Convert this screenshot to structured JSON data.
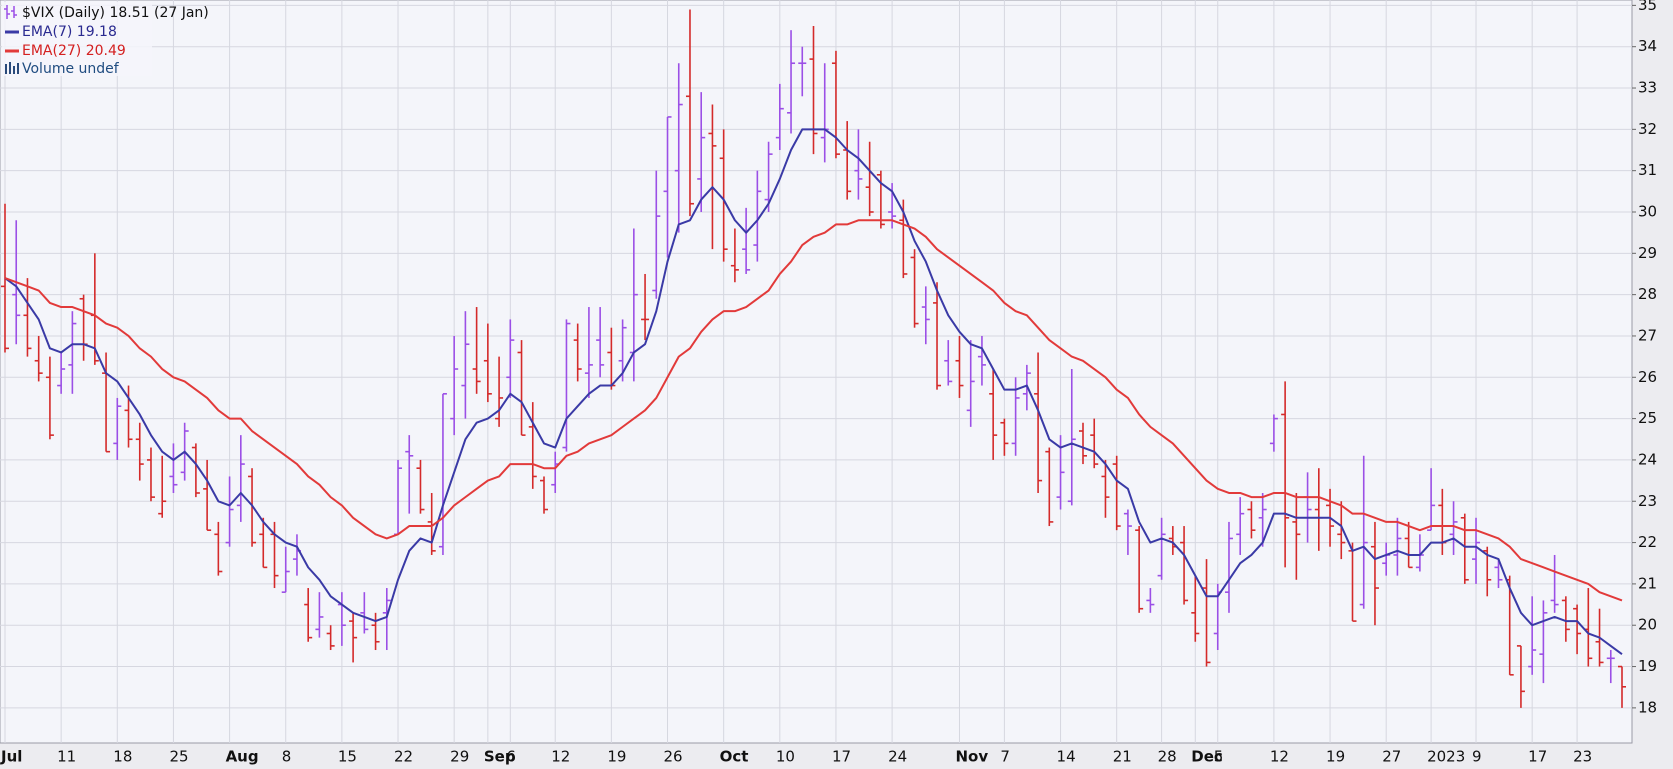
{
  "chart_data": {
    "type": "ohlc",
    "title": "$VIX (Daily) 18.51 (27 Jan)",
    "annotations": [
      "Volume undef"
    ],
    "categories": [
      "Jul",
      null,
      null,
      null,
      null,
      "11",
      null,
      null,
      null,
      null,
      "18",
      null,
      null,
      null,
      null,
      "25",
      null,
      null,
      null,
      null,
      "Aug",
      null,
      null,
      null,
      null,
      "8",
      null,
      null,
      null,
      null,
      "15",
      null,
      null,
      null,
      null,
      "22",
      null,
      null,
      null,
      null,
      "29",
      null,
      null,
      "Sep",
      null,
      "6",
      null,
      null,
      null,
      "12",
      null,
      null,
      null,
      null,
      "19",
      null,
      null,
      null,
      null,
      "26",
      null,
      null,
      null,
      null,
      "Oct",
      null,
      null,
      null,
      null,
      "10",
      null,
      null,
      null,
      null,
      "17",
      null,
      null,
      null,
      null,
      "24",
      null,
      null,
      null,
      null,
      null,
      "Nov",
      null,
      null,
      null,
      "7",
      null,
      null,
      null,
      null,
      "14",
      null,
      null,
      null,
      null,
      "21",
      null,
      null,
      null,
      "28",
      null,
      null,
      "Dec",
      null,
      "5",
      null,
      null,
      null,
      null,
      "12",
      null,
      null,
      null,
      null,
      "19",
      null,
      null,
      null,
      null,
      "27",
      null,
      null,
      null,
      "2023",
      null,
      null,
      null,
      "9",
      null,
      null,
      null,
      null,
      "17",
      null,
      null,
      null,
      "23",
      null,
      null,
      null,
      null
    ],
    "ylim": [
      17.15,
      35.13
    ],
    "yticks": [
      18,
      19,
      20,
      21,
      22,
      23,
      24,
      25,
      26,
      27,
      28,
      29,
      30,
      31,
      32,
      33,
      34,
      35
    ],
    "grid": true,
    "series": [
      {
        "type": "ohlc",
        "up_color": "#9b4fe6",
        "down_color": "#d42a2a",
        "open": [
          28.2,
          28.0,
          27.5,
          26.4,
          26.0,
          25.8,
          26.3,
          27.9,
          27.5,
          26.1,
          24.4,
          25.2,
          24.5,
          24.0,
          22.7,
          23.6,
          23.7,
          24.3,
          23.3,
          22.2,
          22.0,
          22.9,
          23.6,
          22.2,
          22.2,
          20.8,
          21.6,
          20.5,
          19.9,
          19.8,
          20.5,
          20.1,
          20.3,
          20.0,
          20.3,
          22.2,
          24.2,
          23.8,
          22.5,
          21.9,
          25.0,
          25.8,
          26.2,
          26.4,
          25.0,
          26.0,
          26.6,
          24.8,
          23.5,
          23.4,
          24.3,
          26.9,
          26.1,
          26.9,
          26.6,
          26.4,
          26.6,
          27.4,
          28.1,
          30.5,
          31.0,
          32.8,
          30.8,
          31.9,
          31.3,
          28.7,
          29.1,
          29.2,
          30.3,
          31.8,
          32.4,
          33.6,
          33.7,
          31.8,
          33.6,
          31.5,
          31.0,
          30.6,
          30.9,
          30.0,
          29.8,
          28.9,
          27.7,
          27.8,
          26.4,
          26.4,
          25.2,
          26.5,
          25.6,
          24.9,
          24.4,
          25.6,
          25.6,
          24.2,
          23.1,
          23.0,
          24.7,
          24.6,
          23.6,
          23.9,
          22.7,
          22.3,
          20.6,
          21.2,
          22.1,
          22.0,
          20.3,
          20.9,
          19.8,
          20.8,
          22.2,
          22.8,
          22.6,
          24.4,
          25.1,
          22.5,
          23.1,
          22.8,
          22.9,
          22.2,
          21.8,
          20.5,
          21.9,
          21.5,
          21.7,
          22.1,
          21.4,
          22.3,
          22.9,
          22.2,
          22.6,
          21.6,
          21.8,
          21.4,
          21.1,
          19.5,
          19.0,
          19.3,
          20.6,
          20.6,
          20.4,
          19.9,
          19.6,
          19.2,
          19.0
        ],
        "high": [
          30.2,
          29.8,
          28.4,
          27.0,
          26.5,
          26.6,
          27.6,
          28.0,
          29.0,
          26.6,
          25.5,
          25.8,
          24.9,
          24.3,
          24.1,
          24.4,
          24.9,
          24.4,
          24.0,
          22.5,
          23.6,
          24.6,
          23.8,
          22.6,
          22.5,
          21.9,
          22.2,
          20.9,
          20.8,
          20.0,
          20.8,
          20.3,
          20.8,
          20.3,
          20.9,
          24.0,
          24.6,
          24.0,
          23.2,
          25.6,
          27.0,
          27.6,
          27.7,
          27.3,
          26.5,
          27.4,
          26.9,
          25.4,
          23.6,
          24.2,
          27.4,
          27.3,
          27.7,
          27.7,
          27.2,
          27.4,
          29.6,
          28.5,
          31.0,
          32.3,
          33.6,
          34.9,
          32.9,
          32.6,
          32.0,
          29.6,
          30.1,
          31.0,
          31.7,
          33.1,
          34.4,
          34.0,
          34.5,
          33.6,
          33.9,
          32.2,
          32.0,
          31.7,
          31.0,
          30.7,
          30.3,
          29.1,
          28.2,
          28.3,
          26.9,
          27.0,
          26.9,
          27.0,
          26.2,
          25.0,
          26.0,
          26.3,
          26.6,
          24.3,
          24.6,
          26.2,
          24.9,
          25.0,
          24.0,
          24.1,
          22.8,
          22.4,
          20.9,
          22.6,
          22.4,
          22.4,
          21.2,
          21.6,
          21.0,
          22.5,
          23.1,
          23.0,
          23.2,
          25.1,
          25.9,
          23.2,
          23.7,
          23.8,
          23.3,
          23.0,
          22.0,
          24.1,
          22.5,
          22.0,
          22.6,
          22.5,
          22.2,
          23.8,
          23.3,
          23.0,
          22.7,
          22.6,
          21.9,
          21.6,
          21.2,
          19.5,
          20.7,
          20.6,
          21.7,
          20.7,
          20.5,
          20.9,
          20.4,
          19.4,
          19.0
        ],
        "low": [
          26.6,
          26.8,
          26.5,
          25.9,
          24.5,
          25.6,
          25.6,
          26.4,
          26.3,
          24.2,
          24.0,
          24.3,
          23.5,
          23.0,
          22.6,
          23.2,
          23.5,
          23.1,
          22.3,
          21.2,
          21.9,
          22.5,
          21.9,
          21.4,
          20.9,
          20.8,
          21.2,
          19.6,
          19.7,
          19.4,
          19.5,
          19.1,
          19.8,
          19.4,
          19.4,
          22.2,
          22.7,
          22.7,
          21.7,
          21.7,
          24.6,
          25.0,
          25.6,
          25.4,
          24.8,
          25.5,
          24.6,
          23.3,
          22.7,
          23.2,
          24.2,
          25.9,
          25.5,
          26.0,
          25.7,
          25.9,
          25.9,
          26.9,
          27.9,
          28.9,
          29.5,
          29.9,
          30.0,
          29.1,
          28.8,
          28.3,
          28.5,
          28.8,
          30.0,
          31.5,
          31.9,
          32.8,
          31.4,
          31.2,
          31.3,
          30.3,
          30.3,
          29.9,
          29.6,
          29.6,
          28.4,
          27.2,
          26.8,
          25.7,
          25.8,
          25.5,
          24.8,
          25.8,
          24.0,
          24.1,
          24.1,
          25.2,
          23.2,
          22.4,
          22.8,
          22.9,
          23.9,
          23.8,
          22.6,
          22.3,
          21.7,
          20.3,
          20.3,
          21.1,
          21.7,
          20.5,
          19.6,
          19.0,
          19.4,
          20.3,
          21.7,
          22.1,
          21.9,
          24.2,
          21.4,
          21.1,
          22.0,
          21.8,
          21.9,
          21.6,
          20.1,
          20.4,
          20.0,
          21.2,
          21.2,
          21.4,
          21.3,
          22.3,
          21.7,
          21.7,
          21.0,
          21.0,
          20.7,
          20.9,
          18.8,
          18.0,
          18.8,
          18.6,
          20.3,
          19.6,
          19.3,
          19.0,
          19.0,
          18.6,
          18.0
        ],
        "close": [
          26.7,
          27.5,
          26.7,
          26.1,
          24.6,
          26.2,
          27.3,
          26.8,
          26.4,
          24.2,
          25.3,
          24.5,
          23.9,
          23.1,
          23.0,
          23.4,
          24.7,
          23.2,
          22.3,
          21.3,
          22.8,
          23.9,
          22.0,
          21.4,
          21.2,
          21.3,
          21.8,
          19.7,
          20.2,
          19.5,
          20.0,
          19.7,
          19.9,
          19.6,
          20.6,
          23.8,
          24.1,
          22.8,
          21.8,
          25.6,
          26.2,
          26.8,
          25.9,
          25.6,
          25.5,
          26.9,
          24.6,
          23.6,
          22.8,
          23.9,
          27.3,
          26.2,
          26.3,
          26.3,
          25.8,
          27.2,
          28.0,
          27.4,
          29.9,
          32.3,
          32.6,
          30.2,
          31.8,
          31.6,
          29.1,
          28.6,
          28.6,
          30.5,
          31.4,
          32.5,
          33.6,
          33.6,
          31.9,
          32.0,
          31.4,
          30.5,
          30.8,
          30.0,
          29.7,
          29.9,
          28.5,
          27.3,
          27.4,
          25.8,
          25.9,
          25.8,
          25.9,
          26.3,
          24.6,
          24.4,
          25.5,
          26.1,
          23.5,
          22.5,
          23.7,
          24.5,
          24.1,
          23.9,
          23.1,
          22.4,
          22.4,
          20.4,
          20.5,
          22.2,
          21.9,
          20.6,
          19.8,
          19.1,
          20.8,
          22.1,
          22.7,
          22.3,
          22.8,
          25.0,
          22.6,
          22.2,
          22.8,
          22.6,
          22.4,
          22.0,
          20.1,
          22.0,
          20.9,
          21.7,
          22.1,
          21.4,
          21.7,
          22.9,
          22.0,
          22.5,
          21.1,
          22.0,
          21.1,
          21.1,
          18.8,
          18.4,
          19.4,
          20.3,
          20.5,
          19.9,
          19.8,
          19.2,
          19.1,
          19.2,
          18.51
        ]
      },
      {
        "type": "line",
        "name": "EMA(7) 19.18",
        "color": "#3a3aa6",
        "values": [
          28.4,
          28.2,
          27.8,
          27.4,
          26.7,
          26.6,
          26.8,
          26.8,
          26.7,
          26.1,
          25.9,
          25.5,
          25.1,
          24.6,
          24.2,
          24.0,
          24.2,
          23.9,
          23.5,
          23.0,
          22.9,
          23.2,
          22.9,
          22.5,
          22.2,
          22.0,
          21.9,
          21.4,
          21.1,
          20.7,
          20.5,
          20.3,
          20.2,
          20.1,
          20.2,
          21.1,
          21.8,
          22.1,
          22.0,
          22.9,
          23.7,
          24.5,
          24.9,
          25.0,
          25.2,
          25.6,
          25.4,
          24.9,
          24.4,
          24.3,
          25.0,
          25.3,
          25.6,
          25.8,
          25.8,
          26.1,
          26.6,
          26.8,
          27.6,
          28.8,
          29.7,
          29.8,
          30.3,
          30.6,
          30.3,
          29.8,
          29.5,
          29.8,
          30.2,
          30.8,
          31.5,
          32.0,
          32.0,
          32.0,
          31.8,
          31.5,
          31.3,
          31.0,
          30.7,
          30.5,
          30.0,
          29.3,
          28.8,
          28.1,
          27.5,
          27.1,
          26.8,
          26.7,
          26.2,
          25.7,
          25.7,
          25.8,
          25.2,
          24.5,
          24.3,
          24.4,
          24.3,
          24.2,
          23.9,
          23.5,
          23.3,
          22.5,
          22.0,
          22.1,
          22.0,
          21.7,
          21.2,
          20.7,
          20.7,
          21.1,
          21.5,
          21.7,
          22.0,
          22.7,
          22.7,
          22.6,
          22.6,
          22.6,
          22.6,
          22.4,
          21.8,
          21.9,
          21.6,
          21.7,
          21.8,
          21.7,
          21.7,
          22.0,
          22.0,
          22.1,
          21.9,
          21.9,
          21.7,
          21.6,
          20.9,
          20.3,
          20.0,
          20.1,
          20.2,
          20.1,
          20.1,
          19.8,
          19.7,
          19.5,
          19.3
        ]
      },
      {
        "type": "line",
        "name": "EMA(27) 20.49",
        "color": "#e23a3a",
        "values": [
          28.4,
          28.3,
          28.2,
          28.1,
          27.8,
          27.7,
          27.7,
          27.6,
          27.5,
          27.3,
          27.2,
          27.0,
          26.7,
          26.5,
          26.2,
          26.0,
          25.9,
          25.7,
          25.5,
          25.2,
          25.0,
          25.0,
          24.7,
          24.5,
          24.3,
          24.1,
          23.9,
          23.6,
          23.4,
          23.1,
          22.9,
          22.6,
          22.4,
          22.2,
          22.1,
          22.2,
          22.4,
          22.4,
          22.4,
          22.6,
          22.9,
          23.1,
          23.3,
          23.5,
          23.6,
          23.9,
          23.9,
          23.9,
          23.8,
          23.8,
          24.1,
          24.2,
          24.4,
          24.5,
          24.6,
          24.8,
          25.0,
          25.2,
          25.5,
          26.0,
          26.5,
          26.7,
          27.1,
          27.4,
          27.6,
          27.6,
          27.7,
          27.9,
          28.1,
          28.5,
          28.8,
          29.2,
          29.4,
          29.5,
          29.7,
          29.7,
          29.8,
          29.8,
          29.8,
          29.8,
          29.7,
          29.6,
          29.4,
          29.1,
          28.9,
          28.7,
          28.5,
          28.3,
          28.1,
          27.8,
          27.6,
          27.5,
          27.2,
          26.9,
          26.7,
          26.5,
          26.4,
          26.2,
          26.0,
          25.7,
          25.5,
          25.1,
          24.8,
          24.6,
          24.4,
          24.1,
          23.8,
          23.5,
          23.3,
          23.2,
          23.2,
          23.1,
          23.1,
          23.2,
          23.2,
          23.1,
          23.1,
          23.1,
          23.0,
          22.9,
          22.7,
          22.7,
          22.6,
          22.5,
          22.5,
          22.4,
          22.3,
          22.4,
          22.4,
          22.4,
          22.3,
          22.3,
          22.2,
          22.1,
          21.9,
          21.6,
          21.5,
          21.4,
          21.3,
          21.2,
          21.1,
          21.0,
          20.8,
          20.7,
          20.6
        ]
      }
    ]
  }
}
